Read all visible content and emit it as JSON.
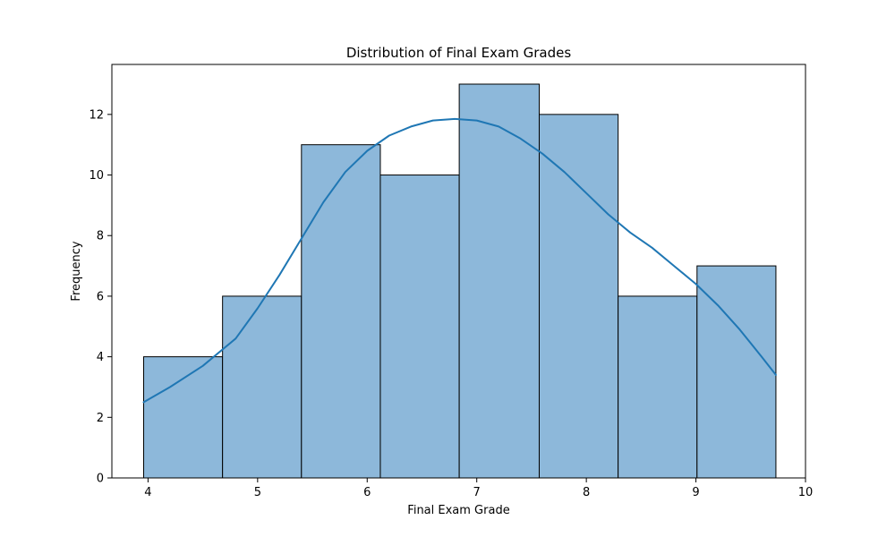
{
  "chart_data": {
    "type": "bar",
    "title": "Distribution of Final Exam Grades",
    "xlabel": "Final Exam Grade",
    "ylabel": "Frequency",
    "xlim": [
      3.67,
      10.0
    ],
    "ylim": [
      0,
      13.65
    ],
    "xticks": [
      4,
      5,
      6,
      7,
      8,
      9,
      10
    ],
    "yticks": [
      0,
      2,
      4,
      6,
      8,
      10,
      12
    ],
    "bins": [
      {
        "start": 3.96,
        "end": 4.68,
        "count": 4
      },
      {
        "start": 4.68,
        "end": 5.4,
        "count": 6
      },
      {
        "start": 5.4,
        "end": 6.12,
        "count": 11
      },
      {
        "start": 6.12,
        "end": 6.84,
        "count": 10
      },
      {
        "start": 6.84,
        "end": 7.57,
        "count": 13
      },
      {
        "start": 7.57,
        "end": 8.29,
        "count": 12
      },
      {
        "start": 8.29,
        "end": 9.01,
        "count": 6
      },
      {
        "start": 9.01,
        "end": 9.73,
        "count": 7
      }
    ],
    "kde": {
      "x": [
        3.96,
        4.2,
        4.5,
        4.8,
        5.0,
        5.2,
        5.4,
        5.6,
        5.8,
        6.0,
        6.2,
        6.4,
        6.6,
        6.8,
        7.0,
        7.2,
        7.4,
        7.6,
        7.8,
        8.0,
        8.2,
        8.4,
        8.6,
        8.8,
        9.0,
        9.2,
        9.4,
        9.6,
        9.73
      ],
      "y": [
        2.5,
        3.0,
        3.7,
        4.6,
        5.6,
        6.7,
        7.9,
        9.1,
        10.1,
        10.8,
        11.3,
        11.6,
        11.8,
        11.85,
        11.8,
        11.6,
        11.2,
        10.7,
        10.1,
        9.4,
        8.7,
        8.1,
        7.6,
        7.0,
        6.4,
        5.7,
        4.9,
        4.0,
        3.4
      ]
    },
    "colors": {
      "bar_fill": "#8db8da",
      "bar_edge": "#000000",
      "kde_line": "#1f77b4"
    },
    "grid": false
  }
}
